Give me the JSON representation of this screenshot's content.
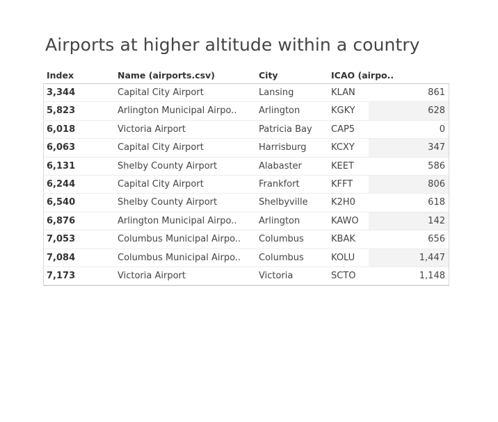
{
  "title": "Airports at higher altitude within a country",
  "table": {
    "headers": {
      "index": "Index",
      "name": "Name (airports.csv)",
      "city": "City",
      "icao": "ICAO (airpo.."
    },
    "rows": [
      {
        "index": "3,344",
        "name": "Capital City Airport",
        "city": "Lansing",
        "icao": "KLAN",
        "value": "861",
        "shaded": false
      },
      {
        "index": "5,823",
        "name": "Arlington Municipal Airpo..",
        "city": "Arlington",
        "icao": "KGKY",
        "value": "628",
        "shaded": true
      },
      {
        "index": "6,018",
        "name": "Victoria Airport",
        "city": "Patricia Bay",
        "icao": "CAP5",
        "value": "0",
        "shaded": false
      },
      {
        "index": "6,063",
        "name": "Capital City Airport",
        "city": "Harrisburg",
        "icao": "KCXY",
        "value": "347",
        "shaded": true
      },
      {
        "index": "6,131",
        "name": "Shelby County Airport",
        "city": "Alabaster",
        "icao": "KEET",
        "value": "586",
        "shaded": false
      },
      {
        "index": "6,244",
        "name": "Capital City Airport",
        "city": "Frankfort",
        "icao": "KFFT",
        "value": "806",
        "shaded": true
      },
      {
        "index": "6,540",
        "name": "Shelby County Airport",
        "city": "Shelbyville",
        "icao": "K2H0",
        "value": "618",
        "shaded": false
      },
      {
        "index": "6,876",
        "name": "Arlington Municipal Airpo..",
        "city": "Arlington",
        "icao": "KAWO",
        "value": "142",
        "shaded": true
      },
      {
        "index": "7,053",
        "name": "Columbus Municipal Airpo..",
        "city": "Columbus",
        "icao": "KBAK",
        "value": "656",
        "shaded": false
      },
      {
        "index": "7,084",
        "name": "Columbus Municipal Airpo..",
        "city": "Columbus",
        "icao": "KOLU",
        "value": "1,447",
        "shaded": true
      },
      {
        "index": "7,173",
        "name": "Victoria Airport",
        "city": "Victoria",
        "icao": "SCTO",
        "value": "1,148",
        "shaded": false
      }
    ]
  },
  "colors": {
    "text": "#444444",
    "header_text": "#333333",
    "shade": "#f3f3f3",
    "rule": "#c8c8c8"
  }
}
